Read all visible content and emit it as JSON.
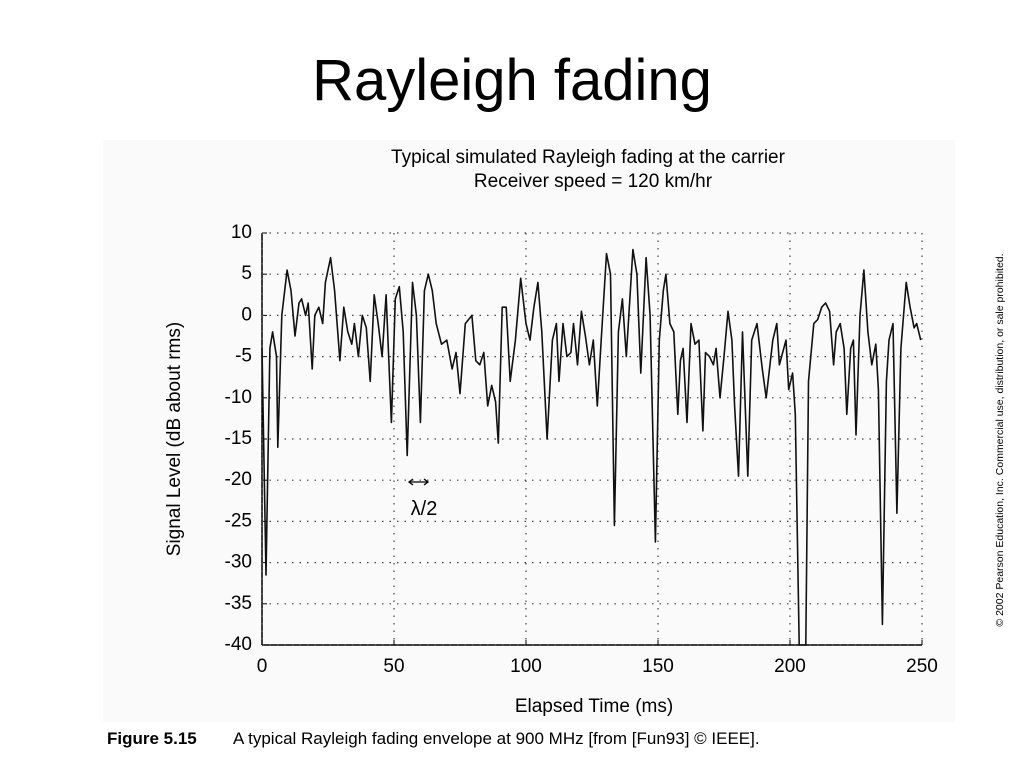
{
  "slide_title": "Rayleigh fading",
  "caption": {
    "label": "Figure 5.15",
    "text": "A typical Rayleigh fading envelope at 900 MHz [from [Fun93] © IEEE]."
  },
  "copyright": "© 2002 Pearson Education, Inc. Commercial use, distribution, or sale prohibited.",
  "chart_data": {
    "type": "line",
    "title": "Typical simulated Rayleigh fading at the carrier",
    "subtitle": "Receiver speed = 120 km/hr",
    "x_label": "Elapsed Time (ms)",
    "y_label": "Signal Level (dB about rms)",
    "annotation": "λ/2",
    "color": "#111111",
    "grid": true,
    "xlim": [
      0,
      250
    ],
    "xticks": [
      0,
      50,
      100,
      150,
      200,
      250
    ],
    "ylim": [
      -40,
      10
    ],
    "yticks": [
      10,
      5,
      0,
      -5,
      -10,
      -15,
      -20,
      -25,
      -30,
      -35,
      -40
    ],
    "x": [
      0,
      1.5,
      3,
      4,
      5.5,
      6,
      7.5,
      9.5,
      11,
      12.5,
      14,
      15,
      16.5,
      17.5,
      19,
      20,
      21.5,
      23,
      24,
      26,
      27.5,
      29.5,
      31,
      32.5,
      34,
      35,
      36.5,
      38,
      39.5,
      41,
      42.5,
      44,
      45.5,
      47,
      49,
      50.5,
      52,
      53.5,
      55,
      57,
      58.5,
      60,
      61.5,
      63,
      64.5,
      66,
      68,
      70,
      72,
      73.5,
      75,
      77,
      79.5,
      81,
      82.5,
      84,
      85.5,
      87,
      88.5,
      89.5,
      91,
      92.5,
      94,
      96,
      98,
      100,
      101.5,
      103,
      104.5,
      106,
      108,
      110,
      111.5,
      112.5,
      114,
      115.5,
      117,
      118,
      119.5,
      121,
      122.5,
      124,
      125.5,
      127,
      128.5,
      130.5,
      132,
      133.5,
      135,
      136.5,
      138,
      140.5,
      142,
      143.5,
      145.5,
      147,
      149,
      150.5,
      152,
      153,
      154.5,
      156,
      157.5,
      158.5,
      159.5,
      161,
      162.5,
      164,
      165.5,
      167,
      168,
      169.5,
      171,
      172,
      173.5,
      175,
      176.5,
      178,
      179,
      180.5,
      182,
      184,
      185.5,
      187.5,
      189.5,
      191,
      193.5,
      195,
      196,
      198.5,
      199.5,
      201,
      202,
      203.5,
      206,
      207,
      209,
      210.5,
      212,
      213.5,
      215,
      216.5,
      217.5,
      219,
      220.5,
      221.5,
      223,
      224,
      225,
      226.5,
      228,
      229.5,
      231,
      232.5,
      233.5,
      235,
      236.5,
      237.5,
      239,
      240.5,
      242,
      244,
      245.5,
      247,
      248,
      249.5
    ],
    "values": [
      -4,
      -31.5,
      -4,
      -2,
      -5,
      -16,
      0,
      5.5,
      3,
      -2.5,
      1.5,
      2,
      0,
      1.5,
      -6.5,
      0,
      1,
      -1,
      4,
      7,
      3,
      -5.5,
      1,
      -2,
      -3.5,
      -1,
      -5,
      0,
      -1.5,
      -8,
      2.5,
      -1,
      -5,
      2.5,
      -13,
      2,
      3.5,
      -2,
      -17,
      4,
      0,
      -13,
      3,
      5,
      3,
      -1,
      -3.5,
      -3,
      -6.5,
      -4.5,
      -9.5,
      -1,
      0,
      -5.5,
      -6,
      -4.5,
      -11,
      -8.5,
      -10.5,
      -15.5,
      1,
      1,
      -8,
      -3,
      4.5,
      -1,
      -3,
      1,
      4,
      -2,
      -15,
      -3,
      -1,
      -8,
      -1,
      -5,
      -4.5,
      -1,
      -6,
      0.5,
      -2.5,
      -6,
      -3,
      -11,
      -3,
      7.5,
      5,
      -25.5,
      -2,
      2,
      -5,
      8,
      5,
      -7,
      7,
      0,
      -27.5,
      -3,
      3,
      5,
      -1,
      -2,
      -12,
      -5.5,
      -4,
      -13,
      -1,
      -3.5,
      -3,
      -14,
      -4.5,
      -5,
      -6,
      -4,
      -10,
      -5,
      0.5,
      -3,
      -11,
      -19.5,
      -2,
      -19.5,
      -3,
      -1,
      -6.5,
      -10,
      -3,
      -1,
      -6,
      -3,
      -9,
      -7,
      -12,
      -40,
      -40,
      -8,
      -1,
      -0.5,
      1,
      1.5,
      0.5,
      -6,
      -2,
      -1,
      -4,
      -12,
      -4,
      -3,
      -14.5,
      0,
      5.5,
      -2,
      -6,
      -3.5,
      -9,
      -37.5,
      -8,
      -3,
      -1,
      -24,
      -4,
      4,
      1,
      -1.5,
      -1,
      -3
    ]
  }
}
